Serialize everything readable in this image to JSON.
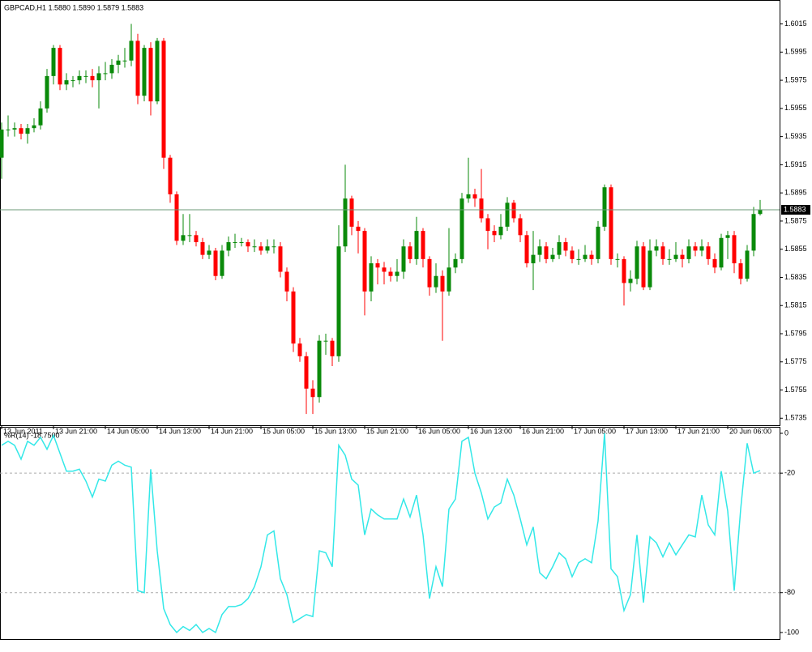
{
  "chart_data": [
    {
      "type": "candlestick",
      "title": "GBPCAD,H1  1.5880 1.5890 1.5879 1.5883",
      "up_color": "#0a8a0a",
      "down_color": "#ff0000",
      "price_line_color": "#6e9a7a",
      "xlim": [
        -0.25,
        120
      ],
      "xticks": [
        {
          "value": 0,
          "label": "13 Jun 2011"
        },
        {
          "value": 8,
          "label": "13 Jun 21:00"
        },
        {
          "value": 16,
          "label": "14 Jun 05:00"
        },
        {
          "value": 24,
          "label": "14 Jun 13:00"
        },
        {
          "value": 32,
          "label": "14 Jun 21:00"
        },
        {
          "value": 40,
          "label": "15 Jun 05:00"
        },
        {
          "value": 48,
          "label": "15 Jun 13:00"
        },
        {
          "value": 56,
          "label": "15 Jun 21:00"
        },
        {
          "value": 64,
          "label": "16 Jun 05:00"
        },
        {
          "value": 72,
          "label": "16 Jun 13:00"
        },
        {
          "value": 80,
          "label": "16 Jun 21:00"
        },
        {
          "value": 88,
          "label": "17 Jun 05:00"
        },
        {
          "value": 96,
          "label": "17 Jun 13:00"
        },
        {
          "value": 104,
          "label": "17 Jun 21:00"
        },
        {
          "value": 112,
          "label": "20 Jun 06:00"
        }
      ],
      "ylim": [
        1.573,
        1.6032
      ],
      "yticks": [
        1.6015,
        1.5995,
        1.5975,
        1.5955,
        1.5935,
        1.5915,
        1.5895,
        1.5875,
        1.5855,
        1.5835,
        1.5815,
        1.5795,
        1.5775,
        1.5755,
        1.5735
      ],
      "open": [
        1.592,
        1.594,
        1.594,
        1.5941,
        1.5937,
        1.5941,
        1.5943,
        1.5955,
        1.5978,
        1.5998,
        1.5972,
        1.5975,
        1.5975,
        1.5978,
        1.5978,
        1.5975,
        1.598,
        1.598,
        1.5986,
        1.5989,
        1.5989,
        1.6003,
        1.5964,
        1.5998,
        1.596,
        1.6003,
        1.592,
        1.5894,
        1.5861,
        1.5865,
        1.5865,
        1.586,
        1.5851,
        1.5854,
        1.5836,
        1.5854,
        1.586,
        1.586,
        1.586,
        1.5857,
        1.5857,
        1.5854,
        1.5857,
        1.5857,
        1.5839,
        1.5825,
        1.5788,
        1.5779,
        1.5756,
        1.575,
        1.579,
        1.579,
        1.5779,
        1.5857,
        1.5891,
        1.5871,
        1.5868,
        1.5825,
        1.5845,
        1.5842,
        1.5839,
        1.5836,
        1.5839,
        1.5857,
        1.5848,
        1.5868,
        1.5848,
        1.5828,
        1.5836,
        1.5825,
        1.5842,
        1.5848,
        1.5891,
        1.5894,
        1.5891,
        1.5877,
        1.5868,
        1.5865,
        1.5871,
        1.5888,
        1.5877,
        1.5865,
        1.5845,
        1.5851,
        1.5857,
        1.5848,
        1.5851,
        1.586,
        1.5854,
        1.5848,
        1.5848,
        1.5851,
        1.5848,
        1.5871,
        1.5899,
        1.5848,
        1.5848,
        1.5831,
        1.5834,
        1.5857,
        1.5828,
        1.5854,
        1.5857,
        1.5848,
        1.5848,
        1.5851,
        1.5848,
        1.5857,
        1.5854,
        1.5857,
        1.5848,
        1.5842,
        1.5863,
        1.5865,
        1.5845,
        1.5834,
        1.5854,
        1.588
      ],
      "high": [
        1.5945,
        1.595,
        1.5945,
        1.5944,
        1.5944,
        1.5948,
        1.596,
        1.5983,
        1.6,
        1.6,
        1.598,
        1.5978,
        1.5982,
        1.5982,
        1.5983,
        1.5985,
        1.5988,
        1.599,
        1.5993,
        1.5998,
        1.6015,
        1.6008,
        1.6,
        1.6002,
        1.6005,
        1.6005,
        1.5922,
        1.5896,
        1.588,
        1.588,
        1.5868,
        1.5863,
        1.5858,
        1.5856,
        1.5858,
        1.5864,
        1.5866,
        1.5863,
        1.5862,
        1.5862,
        1.586,
        1.5862,
        1.5862,
        1.586,
        1.5842,
        1.5828,
        1.5792,
        1.5782,
        1.5762,
        1.5794,
        1.5795,
        1.5792,
        1.5872,
        1.5915,
        1.5893,
        1.5875,
        1.587,
        1.585,
        1.5848,
        1.5846,
        1.5842,
        1.5848,
        1.5862,
        1.586,
        1.5878,
        1.587,
        1.585,
        1.5845,
        1.584,
        1.587,
        1.5852,
        1.5895,
        1.592,
        1.5898,
        1.5912,
        1.588,
        1.5872,
        1.588,
        1.5892,
        1.589,
        1.588,
        1.5868,
        1.5868,
        1.5862,
        1.586,
        1.5856,
        1.5865,
        1.5863,
        1.5857,
        1.5855,
        1.5858,
        1.5854,
        1.5875,
        1.5901,
        1.5901,
        1.5852,
        1.585,
        1.584,
        1.5861,
        1.586,
        1.5862,
        1.5862,
        1.586,
        1.5855,
        1.586,
        1.5855,
        1.5862,
        1.586,
        1.5862,
        1.586,
        1.5852,
        1.5866,
        1.5868,
        1.5868,
        1.5848,
        1.5858,
        1.5885,
        1.589
      ],
      "low": [
        1.5905,
        1.5935,
        1.5935,
        1.5933,
        1.593,
        1.5938,
        1.594,
        1.5952,
        1.5972,
        1.5968,
        1.5968,
        1.597,
        1.5972,
        1.5973,
        1.597,
        1.5955,
        1.5975,
        1.5976,
        1.598,
        1.5984,
        1.5985,
        1.5958,
        1.596,
        1.595,
        1.5958,
        1.5912,
        1.5888,
        1.5858,
        1.5858,
        1.586,
        1.5857,
        1.5848,
        1.5848,
        1.5833,
        1.5834,
        1.585,
        1.5856,
        1.5857,
        1.5853,
        1.5853,
        1.5851,
        1.5852,
        1.5852,
        1.5835,
        1.5818,
        1.5782,
        1.5775,
        1.5738,
        1.5738,
        1.5746,
        1.578,
        1.5772,
        1.5775,
        1.5853,
        1.5865,
        1.5852,
        1.5808,
        1.5818,
        1.583,
        1.583,
        1.5832,
        1.5832,
        1.5834,
        1.5845,
        1.5844,
        1.5842,
        1.5822,
        1.5824,
        1.579,
        1.5822,
        1.5838,
        1.5845,
        1.5888,
        1.5885,
        1.5874,
        1.5855,
        1.586,
        1.5862,
        1.5868,
        1.5874,
        1.586,
        1.5842,
        1.5826,
        1.5846,
        1.5845,
        1.5846,
        1.5848,
        1.585,
        1.5845,
        1.5844,
        1.5846,
        1.5844,
        1.5845,
        1.5868,
        1.5844,
        1.5842,
        1.5815,
        1.5825,
        1.583,
        1.5826,
        1.5826,
        1.585,
        1.5844,
        1.5844,
        1.5846,
        1.5842,
        1.5845,
        1.585,
        1.585,
        1.5844,
        1.5838,
        1.584,
        1.5848,
        1.5838,
        1.583,
        1.5832,
        1.585,
        1.5879
      ],
      "close": [
        1.594,
        1.594,
        1.5941,
        1.5937,
        1.5941,
        1.5943,
        1.5955,
        1.5978,
        1.5998,
        1.5972,
        1.5975,
        1.5975,
        1.5978,
        1.5978,
        1.5975,
        1.598,
        1.598,
        1.5986,
        1.5989,
        1.5989,
        1.6003,
        1.5964,
        1.5998,
        1.596,
        1.6003,
        1.592,
        1.5894,
        1.5861,
        1.5865,
        1.5865,
        1.586,
        1.5851,
        1.5854,
        1.5836,
        1.5854,
        1.586,
        1.586,
        1.586,
        1.5857,
        1.5857,
        1.5854,
        1.5857,
        1.5857,
        1.5839,
        1.5825,
        1.5788,
        1.5779,
        1.5756,
        1.575,
        1.579,
        1.579,
        1.5779,
        1.5857,
        1.5891,
        1.5871,
        1.5868,
        1.5825,
        1.5845,
        1.5842,
        1.5839,
        1.5836,
        1.5839,
        1.5857,
        1.5848,
        1.5868,
        1.5848,
        1.5828,
        1.5836,
        1.5825,
        1.5842,
        1.5848,
        1.5891,
        1.5894,
        1.5891,
        1.5877,
        1.5868,
        1.5865,
        1.5871,
        1.5888,
        1.5877,
        1.5865,
        1.5845,
        1.5851,
        1.5857,
        1.5848,
        1.5851,
        1.586,
        1.5854,
        1.5848,
        1.5848,
        1.5851,
        1.5848,
        1.5871,
        1.5899,
        1.5848,
        1.5848,
        1.5831,
        1.5834,
        1.5857,
        1.5828,
        1.5854,
        1.5857,
        1.5848,
        1.5848,
        1.5851,
        1.5848,
        1.5857,
        1.5854,
        1.5857,
        1.5848,
        1.5842,
        1.5863,
        1.5865,
        1.5845,
        1.5834,
        1.5854,
        1.588,
        1.5883
      ]
    },
    {
      "type": "line",
      "title": "%R(14) -18.7500",
      "color": "#33e8e8",
      "xlim": [
        -0.25,
        120
      ],
      "ylim": [
        -103.7,
        3.25
      ],
      "yticks": [
        0,
        -20,
        -80,
        -100
      ],
      "levels": [
        -20,
        -80
      ],
      "values": [
        -6,
        -4,
        -6,
        -13,
        -4,
        -6,
        -2,
        -8,
        -1,
        -10,
        -19,
        -19,
        -18,
        -24,
        -32,
        -23,
        -24,
        -16,
        -14,
        -16,
        -17,
        -79,
        -80,
        -18,
        -59,
        -88,
        -96,
        -100,
        -97,
        -99,
        -96,
        -100,
        -98,
        -100,
        -91,
        -87,
        -87,
        -86,
        -83,
        -77,
        -67,
        -51,
        -49,
        -73,
        -81,
        -95,
        -93,
        -91,
        -92,
        -59,
        -60,
        -67,
        -6,
        -11,
        -23,
        -26,
        -51,
        -38,
        -41,
        -43,
        -43,
        -43,
        -33,
        -42,
        -31,
        -51,
        -83,
        -67,
        -77,
        -38,
        -33,
        -4,
        -2,
        -20,
        -30,
        -43,
        -37,
        -35,
        -23,
        -31,
        -43,
        -56,
        -47,
        -70,
        -73,
        -67,
        -60,
        -63,
        -72,
        -65,
        -63,
        -65,
        -44,
        0,
        -68,
        -72,
        -89,
        -81,
        -51,
        -85,
        -52,
        -55,
        -62,
        -55,
        -61,
        -56,
        -51,
        -52,
        -31,
        -46,
        -51,
        -19,
        -39,
        -79,
        -38,
        -5,
        -20,
        -18.75
      ]
    }
  ]
}
